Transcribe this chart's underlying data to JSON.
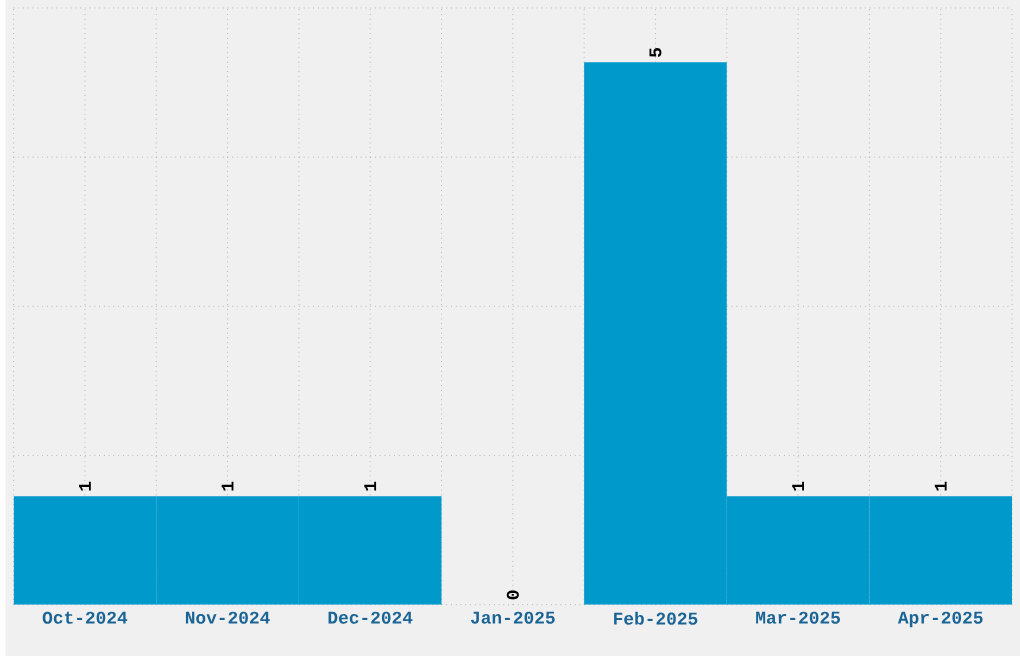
{
  "chart_data": {
    "type": "bar",
    "categories": [
      "Oct-2024",
      "Nov-2024",
      "Dec-2024",
      "Jan-2025",
      "Feb-2025",
      "Mar-2025",
      "Apr-2025"
    ],
    "values": [
      1,
      1,
      1,
      0,
      5,
      1,
      1
    ],
    "color": "#0099cc",
    "ylim": [
      0,
      5.5
    ],
    "yticks": [
      {
        "value": 0,
        "label": null
      },
      {
        "value": 1.375,
        "label": null
      },
      {
        "value": 2.75,
        "label": null
      },
      {
        "value": 4.125,
        "label": null
      },
      {
        "value": 5.5,
        "label": null
      }
    ],
    "grid": true,
    "data_labels": true,
    "tick_labels": "x"
  }
}
